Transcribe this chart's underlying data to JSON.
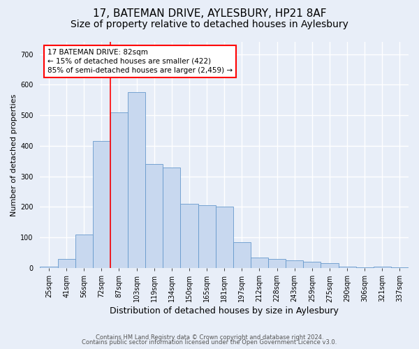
{
  "title1": "17, BATEMAN DRIVE, AYLESBURY, HP21 8AF",
  "title2": "Size of property relative to detached houses in Aylesbury",
  "xlabel": "Distribution of detached houses by size in Aylesbury",
  "ylabel": "Number of detached properties",
  "categories": [
    "25sqm",
    "41sqm",
    "56sqm",
    "72sqm",
    "87sqm",
    "103sqm",
    "119sqm",
    "134sqm",
    "150sqm",
    "165sqm",
    "181sqm",
    "197sqm",
    "212sqm",
    "228sqm",
    "243sqm",
    "259sqm",
    "275sqm",
    "290sqm",
    "306sqm",
    "321sqm",
    "337sqm"
  ],
  "values": [
    5,
    30,
    110,
    415,
    510,
    575,
    340,
    330,
    210,
    205,
    200,
    85,
    35,
    30,
    25,
    20,
    15,
    5,
    2,
    5,
    2
  ],
  "bar_color": "#c8d8ef",
  "bar_edge_color": "#6699cc",
  "annotation_text": "17 BATEMAN DRIVE: 82sqm\n← 15% of detached houses are smaller (422)\n85% of semi-detached houses are larger (2,459) →",
  "footer_text1": "Contains HM Land Registry data © Crown copyright and database right 2024.",
  "footer_text2": "Contains public sector information licensed under the Open Government Licence v3.0.",
  "bg_color": "#e8eef8",
  "plot_bg_color": "#e8eef8",
  "grid_color": "#ffffff",
  "yticks": [
    0,
    100,
    200,
    300,
    400,
    500,
    600,
    700
  ],
  "ylim": [
    0,
    740
  ],
  "vline_pos": 3.5,
  "title_fontsize": 11,
  "subtitle_fontsize": 10,
  "ylabel_fontsize": 8,
  "xlabel_fontsize": 9,
  "tick_fontsize": 7,
  "annot_fontsize": 7.5,
  "footer_fontsize": 6
}
